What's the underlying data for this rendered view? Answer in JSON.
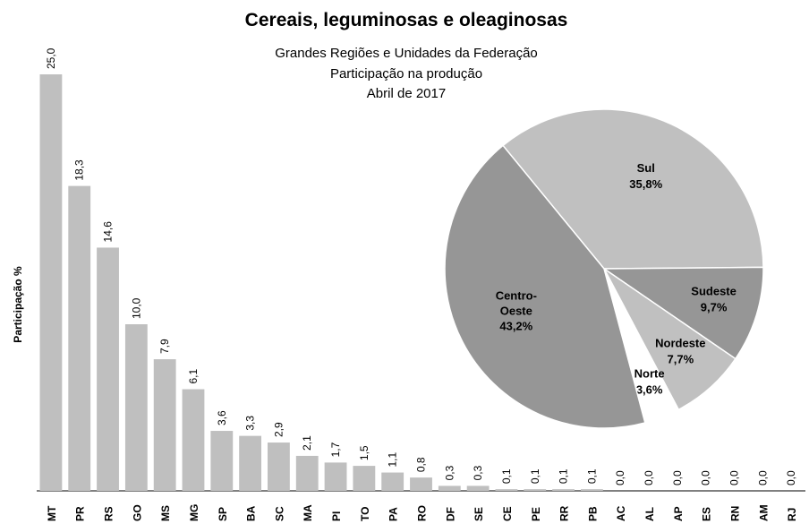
{
  "chart_data": [
    {
      "type": "bar",
      "title": "Cereais, leguminosas e oleaginosas",
      "subtitle": [
        "Grandes Regiões e Unidades da Federação",
        "Participação na produção",
        "Abril de 2017"
      ],
      "y_label": "Participação %",
      "categories": [
        "MT",
        "PR",
        "RS",
        "GO",
        "MS",
        "MG",
        "SP",
        "BA",
        "SC",
        "MA",
        "PI",
        "TO",
        "PA",
        "RO",
        "DF",
        "SE",
        "CE",
        "PE",
        "RR",
        "PB",
        "AC",
        "AL",
        "AP",
        "ES",
        "RN",
        "AM",
        "RJ"
      ],
      "values": [
        25.0,
        18.3,
        14.6,
        10.0,
        7.9,
        6.1,
        3.6,
        3.3,
        2.9,
        2.1,
        1.7,
        1.5,
        1.1,
        0.8,
        0.3,
        0.3,
        0.1,
        0.1,
        0.1,
        0.1,
        0.0,
        0.0,
        0.0,
        0.0,
        0.0,
        0.0,
        0.0
      ],
      "value_labels": [
        "25,0",
        "18,3",
        "14,6",
        "10,0",
        "7,9",
        "6,1",
        "3,6",
        "3,3",
        "2,9",
        "2,1",
        "1,7",
        "1,5",
        "1,1",
        "0,8",
        "0,3",
        "0,3",
        "0,1",
        "0,1",
        "0,1",
        "0,1",
        "0,0",
        "0,0",
        "0,0",
        "0,0",
        "0,0",
        "0,0",
        "0,0"
      ],
      "color": "#bfbfbf"
    },
    {
      "type": "pie",
      "categories": [
        "Sul",
        "Sudeste",
        "Nordeste",
        "Norte",
        "Centro-Oeste"
      ],
      "values": [
        35.8,
        9.7,
        7.7,
        3.6,
        43.2
      ],
      "value_labels": [
        "35,8%",
        "9,7%",
        "7,7%",
        "3,6%",
        "43,2%"
      ],
      "colors": [
        "#c0c0c0",
        "#969696",
        "#c0c0c0",
        "#ffffff",
        "#969696"
      ]
    }
  ]
}
